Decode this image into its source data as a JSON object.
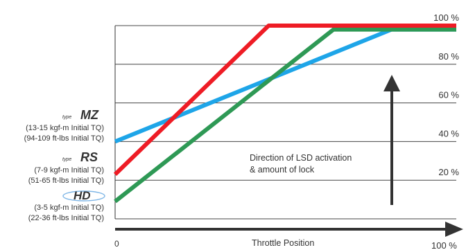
{
  "chart_data": {
    "type": "line",
    "title": "",
    "xlabel": "Throttle Position",
    "ylabel": "",
    "x_tick_labels": [
      "0",
      "100 %"
    ],
    "y_tick_labels": [
      "20 %",
      "40 %",
      "60 %",
      "80 %",
      "100 %"
    ],
    "y_ticks": [
      20,
      40,
      60,
      80,
      100
    ],
    "xlim": [
      0,
      100
    ],
    "ylim": [
      0,
      100
    ],
    "grid": true,
    "series": [
      {
        "color": "#ee1c25",
        "x": [
          0,
          45,
          100
        ],
        "y": [
          23,
          100,
          100
        ]
      },
      {
        "color": "#2e9955",
        "x": [
          0,
          64,
          100
        ],
        "y": [
          9,
          98,
          98
        ]
      },
      {
        "color": "#1ea5e8",
        "x": [
          0,
          81,
          100
        ],
        "y": [
          40,
          98,
          98
        ]
      }
    ],
    "annotation": {
      "line1": "Direction of LSD activation",
      "line2": "& amount of lock"
    },
    "legend_labels": [
      {
        "brand_prefix": "type",
        "brand": "MZ",
        "color": "#e41e26",
        "line1": "(13-15 kgf-m Initial TQ)",
        "line2": "(94-109 ft-lbs Initial TQ)"
      },
      {
        "brand_prefix": "type",
        "brand": "RS",
        "color": "#e41e26",
        "line1": "(7-9 kgf-m Initial TQ)",
        "line2": "(51-65 ft-lbs Initial TQ)"
      },
      {
        "brand_prefix": "",
        "brand": "HD",
        "color": "#2277c7",
        "line1": "(3-5 kgf-m Initial TQ)",
        "line2": "(22-36 ft-lbs Initial TQ)"
      }
    ]
  }
}
